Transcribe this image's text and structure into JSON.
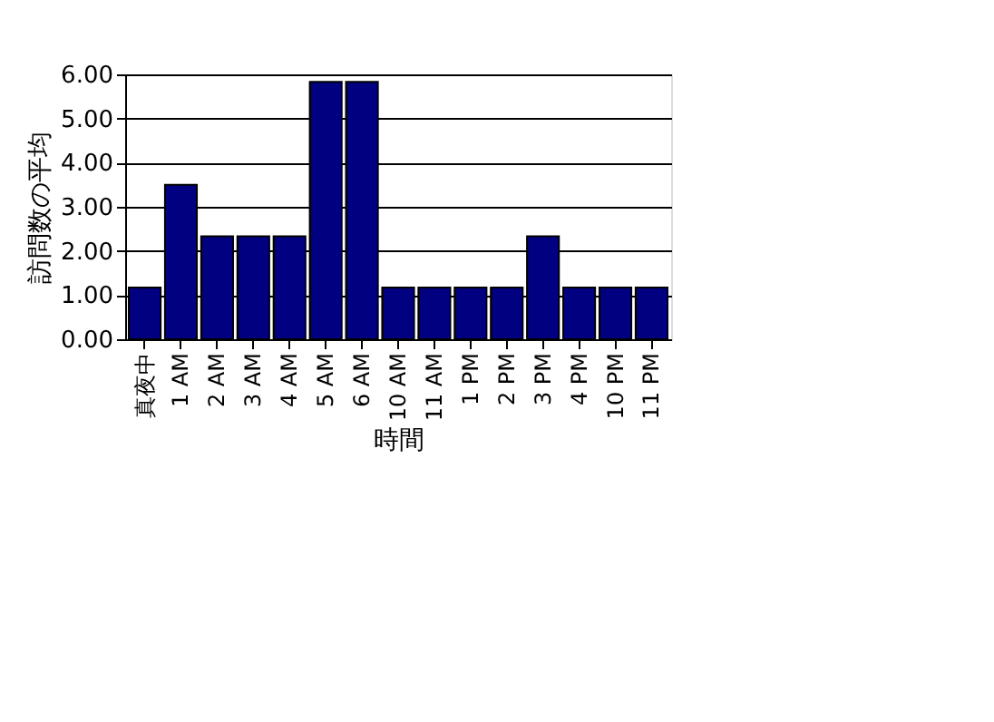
{
  "chart_data": {
    "type": "bar",
    "xlabel": "時間",
    "ylabel": "訪問数の平均",
    "categories": [
      "真夜中",
      "1 AM",
      "2 AM",
      "3 AM",
      "4 AM",
      "5 AM",
      "6 AM",
      "10 AM",
      "11 AM",
      "1 PM",
      "2 PM",
      "3 PM",
      "4 PM",
      "10 PM",
      "11 PM"
    ],
    "values": [
      1.17,
      3.5,
      2.33,
      2.33,
      2.33,
      5.83,
      5.83,
      1.17,
      1.17,
      1.17,
      1.17,
      2.33,
      1.17,
      1.17,
      1.17
    ],
    "color": "#000080",
    "ylim": [
      0,
      6
    ],
    "yticks": [
      {
        "value": 0,
        "label": "0.00"
      },
      {
        "value": 1,
        "label": "1.00"
      },
      {
        "value": 2,
        "label": "2.00"
      },
      {
        "value": 3,
        "label": "3.00"
      },
      {
        "value": 4,
        "label": "4.00"
      },
      {
        "value": 5,
        "label": "5.00"
      },
      {
        "value": 6,
        "label": "6.00"
      }
    ],
    "grid": "y"
  }
}
